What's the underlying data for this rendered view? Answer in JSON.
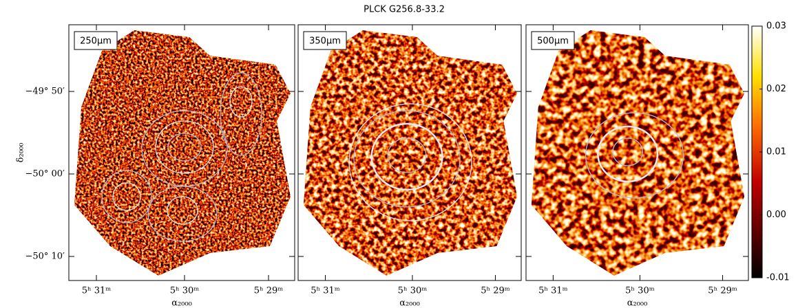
{
  "chart_data": {
    "type": "image",
    "title": "PLCK G256.8-33.2",
    "panels": [
      {
        "label": "250μm"
      },
      {
        "label": "350μm"
      },
      {
        "label": "500μm"
      }
    ],
    "xlabel": "α₂₀₀₀",
    "ylabel": "δ₂₀₀₀",
    "xtick_labels": [
      "5ʰ 31ᵐ",
      "5ʰ 30ᵐ",
      "5ʰ 29ᵐ"
    ],
    "ytick_labels": [
      "−49° 50′",
      "−50° 00′",
      "−50° 10′"
    ],
    "colorbar": {
      "lim": [
        -0.01,
        0.03
      ],
      "ticks": [
        0.03,
        0.02,
        0.01,
        {
          "value": 0,
          "label": "0.00"
        },
        -0.01
      ],
      "colormap": "hot"
    }
  }
}
